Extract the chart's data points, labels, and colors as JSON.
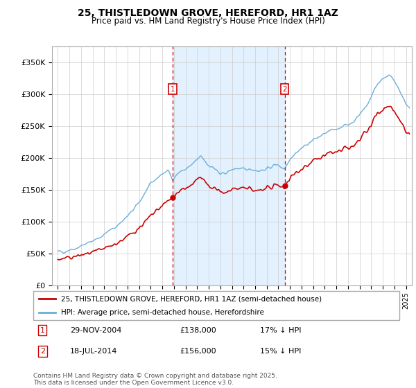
{
  "title": "25, THISTLEDOWN GROVE, HEREFORD, HR1 1AZ",
  "subtitle": "Price paid vs. HM Land Registry's House Price Index (HPI)",
  "legend_line1": "25, THISTLEDOWN GROVE, HEREFORD, HR1 1AZ (semi-detached house)",
  "legend_line2": "HPI: Average price, semi-detached house, Herefordshire",
  "annotation1_label": "1",
  "annotation1_date": "29-NOV-2004",
  "annotation1_price": "£138,000",
  "annotation1_hpi": "17% ↓ HPI",
  "annotation2_label": "2",
  "annotation2_date": "18-JUL-2014",
  "annotation2_price": "£156,000",
  "annotation2_hpi": "15% ↓ HPI",
  "footer": "Contains HM Land Registry data © Crown copyright and database right 2025.\nThis data is licensed under the Open Government Licence v3.0.",
  "hpi_color": "#6BAED6",
  "price_color": "#CC0000",
  "vline_color": "#CC0000",
  "annotation_box_color": "#CC0000",
  "bg_color": "#FFFFFF",
  "plot_bg_color": "#FFFFFF",
  "shade_color": "#DDEEFF",
  "ylim": [
    0,
    375000
  ],
  "yticks": [
    0,
    50000,
    100000,
    150000,
    200000,
    250000,
    300000,
    350000
  ],
  "ytick_labels": [
    "£0",
    "£50K",
    "£100K",
    "£150K",
    "£200K",
    "£250K",
    "£300K",
    "£350K"
  ],
  "sale1_x": 2004.91,
  "sale1_y": 138000,
  "sale2_x": 2014.54,
  "sale2_y": 156000,
  "xmin": 1994.5,
  "xmax": 2025.5
}
